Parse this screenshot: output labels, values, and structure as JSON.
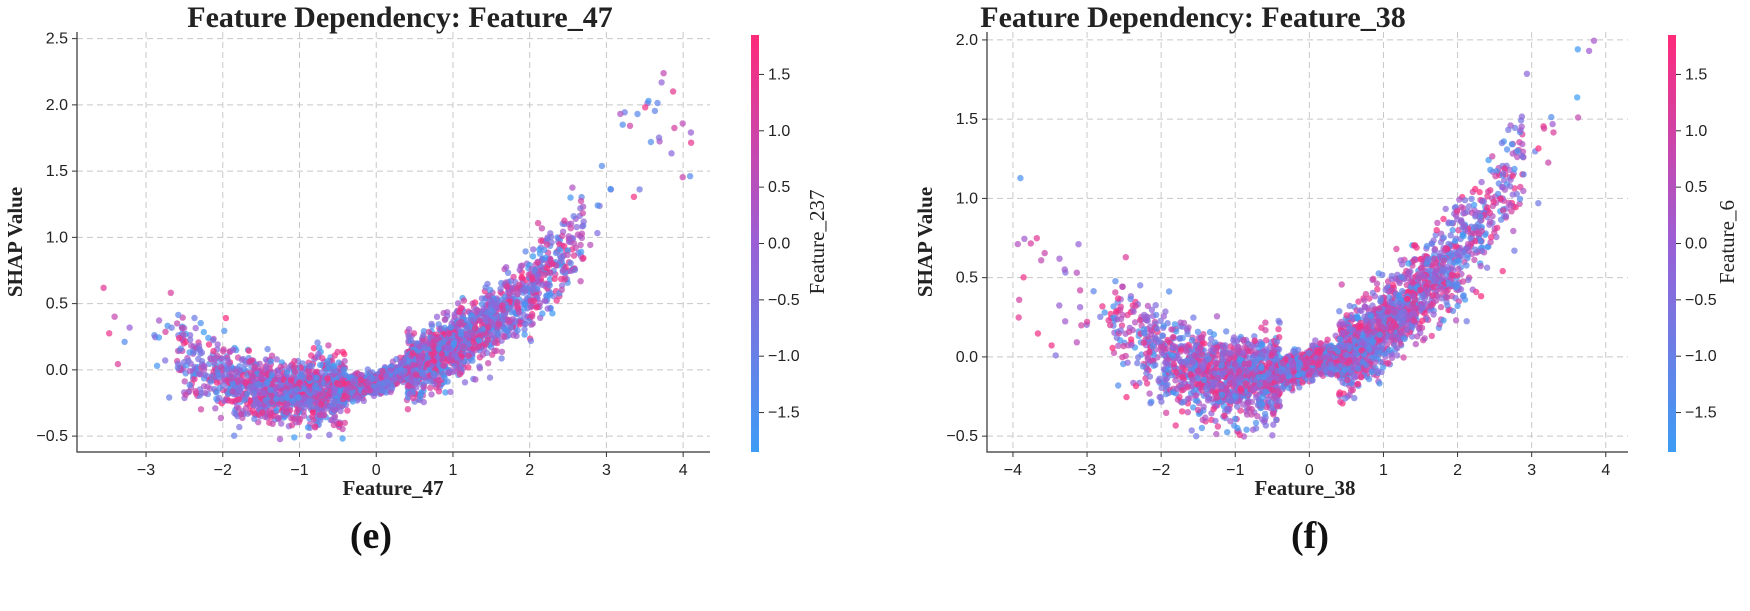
{
  "colors": {
    "low": "#3d9cf5",
    "mid": "#9a5fd6",
    "high": "#ff2a7a"
  },
  "chart_data": [
    {
      "type": "scatter",
      "panel_label": "(e)",
      "title": "Feature Dependency: Feature_47",
      "xlabel": "Feature_47",
      "ylabel": "SHAP Value",
      "colorbar_label": "Feature_237",
      "xlim": [
        -3.9,
        4.35
      ],
      "ylim": [
        -0.62,
        2.55
      ],
      "xticks": [
        -3,
        -2,
        -1,
        0,
        1,
        2,
        3,
        4
      ],
      "yticks": [
        -0.5,
        0.0,
        0.5,
        1.0,
        1.5,
        2.0,
        2.5
      ],
      "xtick_labels": [
        "−3",
        "−2",
        "−1",
        "0",
        "1",
        "2",
        "3",
        "4"
      ],
      "ytick_labels": [
        "−0.5",
        "0.0",
        "0.5",
        "1.0",
        "1.5",
        "2.0",
        "2.5"
      ],
      "colorbar_range": [
        -1.85,
        1.85
      ],
      "colorbar_ticks": [
        -1.5,
        -1.0,
        -0.5,
        0.0,
        0.5,
        1.0,
        1.5
      ],
      "colorbar_tick_labels": [
        "−1.5",
        "−1.0",
        "−0.5",
        "0.0",
        "0.5",
        "1.0",
        "1.5"
      ],
      "shape": {
        "x_range": [
          -3.6,
          4.15
        ],
        "dense_range": [
          -2.6,
          2.7
        ],
        "points": 3500,
        "trend_left": {
          "x": [
            -3.5,
            -2.6,
            -2.0,
            -1.5,
            -1.0,
            -0.5,
            0.0
          ],
          "y": [
            0.3,
            0.15,
            -0.05,
            -0.15,
            -0.18,
            -0.15,
            -0.1
          ]
        },
        "trend_right": {
          "x": [
            0.0,
            0.5,
            1.0,
            1.5,
            2.0,
            2.5,
            3.0,
            3.5,
            4.0
          ],
          "y": [
            -0.1,
            0.02,
            0.18,
            0.37,
            0.58,
            0.86,
            1.35,
            1.85,
            2.0
          ]
        },
        "spread": 0.12
      }
    },
    {
      "type": "scatter",
      "panel_label": "(f)",
      "title": "Feature Dependency: Feature_38",
      "xlabel": "Feature_38",
      "ylabel": "SHAP Value",
      "colorbar_label": "Feature_6",
      "xlim": [
        -4.35,
        4.3
      ],
      "ylim": [
        -0.6,
        2.05
      ],
      "xticks": [
        -4,
        -3,
        -2,
        -1,
        0,
        1,
        2,
        3,
        4
      ],
      "yticks": [
        -0.5,
        0.0,
        0.5,
        1.0,
        1.5,
        2.0
      ],
      "xtick_labels": [
        "−4",
        "−3",
        "−2",
        "−1",
        "0",
        "1",
        "2",
        "3",
        "4"
      ],
      "ytick_labels": [
        "−0.5",
        "0.0",
        "0.5",
        "1.0",
        "1.5",
        "2.0"
      ],
      "colorbar_range": [
        -1.85,
        1.85
      ],
      "colorbar_ticks": [
        -1.5,
        -1.0,
        -0.5,
        0.0,
        0.5,
        1.0,
        1.5
      ],
      "colorbar_tick_labels": [
        "−1.5",
        "−1.0",
        "−0.5",
        "0.0",
        "0.5",
        "1.0",
        "1.5"
      ],
      "shape": {
        "x_range": [
          -4.0,
          3.9
        ],
        "dense_range": [
          -2.7,
          2.9
        ],
        "points": 3500,
        "trend_left": {
          "x": [
            -4.0,
            -3.0,
            -2.5,
            -2.0,
            -1.5,
            -1.0,
            -0.5,
            0.0
          ],
          "y": [
            0.65,
            0.35,
            0.15,
            0.0,
            -0.1,
            -0.15,
            -0.12,
            -0.05
          ]
        },
        "trend_right": {
          "x": [
            0.0,
            0.5,
            1.0,
            1.5,
            2.0,
            2.5,
            3.0,
            3.5,
            3.9
          ],
          "y": [
            -0.05,
            0.02,
            0.18,
            0.4,
            0.65,
            0.95,
            1.35,
            1.65,
            1.9
          ]
        },
        "spread": 0.13
      }
    }
  ]
}
